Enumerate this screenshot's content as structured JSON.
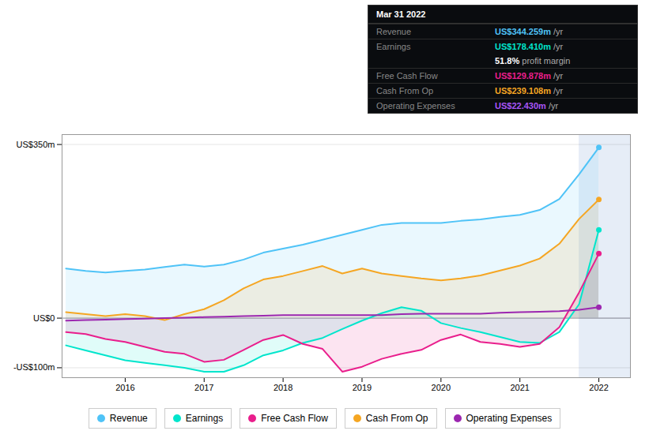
{
  "chart_data": {
    "type": "line",
    "x": [
      2015.25,
      2015.5,
      2015.75,
      2016.0,
      2016.25,
      2016.5,
      2016.75,
      2017.0,
      2017.25,
      2017.5,
      2017.75,
      2018.0,
      2018.25,
      2018.5,
      2018.75,
      2019.0,
      2019.25,
      2019.5,
      2019.75,
      2020.0,
      2020.25,
      2020.5,
      2020.75,
      2021.0,
      2021.25,
      2021.5,
      2021.75,
      2022.0
    ],
    "series": [
      {
        "name": "Revenue",
        "color": "#4fc3f7",
        "values": [
          100,
          95,
          92,
          95,
          98,
          103,
          108,
          104,
          108,
          118,
          132,
          140,
          148,
          158,
          168,
          178,
          188,
          192,
          192,
          192,
          196,
          199,
          204,
          208,
          218,
          240,
          290,
          344
        ]
      },
      {
        "name": "Earnings",
        "color": "#00e5cc",
        "values": [
          -55,
          -65,
          -75,
          -85,
          -90,
          -95,
          -100,
          -108,
          -108,
          -95,
          -75,
          -65,
          -50,
          -40,
          -22,
          -5,
          10,
          22,
          15,
          -10,
          -20,
          -28,
          -38,
          -48,
          -50,
          -28,
          28,
          178
        ]
      },
      {
        "name": "Free Cash Flow",
        "color": "#e91e8c",
        "values": [
          -28,
          -32,
          -42,
          -48,
          -58,
          -68,
          -72,
          -88,
          -84,
          -64,
          -44,
          -34,
          -52,
          -62,
          -108,
          -98,
          -82,
          -72,
          -64,
          -44,
          -33,
          -48,
          -52,
          -58,
          -52,
          -18,
          52,
          130
        ]
      },
      {
        "name": "Cash From Op",
        "color": "#f5a623",
        "values": [
          12,
          8,
          4,
          8,
          4,
          -4,
          8,
          18,
          36,
          60,
          78,
          85,
          95,
          105,
          90,
          100,
          90,
          85,
          80,
          76,
          80,
          86,
          96,
          106,
          120,
          150,
          200,
          239
        ]
      },
      {
        "name": "Operating Expenses",
        "color": "#9c27b0",
        "values": [
          -5,
          -4,
          -3,
          -2,
          -1,
          0,
          1,
          2,
          3,
          4,
          5,
          6,
          6,
          6,
          6,
          6,
          6,
          8,
          9,
          9,
          9,
          9,
          11,
          12,
          13,
          14,
          17,
          22
        ]
      }
    ],
    "xlim": [
      2015.2,
      2022.4
    ],
    "ylim": [
      -120,
      370
    ],
    "xticks": [
      2016,
      2017,
      2018,
      2019,
      2020,
      2021,
      2022
    ],
    "yticks": [
      {
        "value": -100,
        "label": "-US$100m"
      },
      {
        "value": 0,
        "label": "US$0"
      },
      {
        "value": 350,
        "label": "US$350m"
      }
    ],
    "grid": "y",
    "legend": "bottom",
    "highlight_x": [
      2021.75,
      2022.4
    ],
    "annotations": {
      "title": "Mar 31 2022",
      "rows": [
        {
          "label": "Revenue",
          "value": "US$344.259m",
          "suffix": " /yr",
          "color": "#4fc3f7"
        },
        {
          "label": "Earnings",
          "value": "US$178.410m",
          "suffix": " /yr",
          "color": "#00e5cc"
        },
        {
          "value": "51.8%",
          "suffix": " profit margin",
          "color": "#ffffff"
        },
        {
          "label": "Free Cash Flow",
          "value": "US$129.878m",
          "suffix": " /yr",
          "color": "#e91e8c"
        },
        {
          "label": "Cash From Op",
          "value": "US$239.108m",
          "suffix": " /yr",
          "color": "#f5a623"
        },
        {
          "label": "Operating Expenses",
          "value": "US$22.430m",
          "suffix": " /yr",
          "color": "#a855f7"
        }
      ]
    }
  }
}
